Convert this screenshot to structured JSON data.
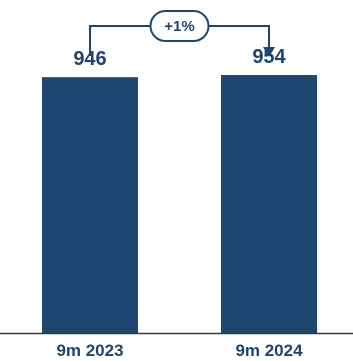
{
  "chart_data": {
    "type": "bar",
    "categories": [
      "9m 2023",
      "9m 2024"
    ],
    "values": [
      946,
      954
    ],
    "value_labels": [
      "946",
      "954"
    ],
    "change_label": "+1%",
    "ylim": [
      0,
      980
    ],
    "grid": false,
    "colors": {
      "bar": "#1f4670",
      "text": "#1f4670",
      "axis": "#3a3a3a",
      "connector": "#1f4670"
    }
  }
}
